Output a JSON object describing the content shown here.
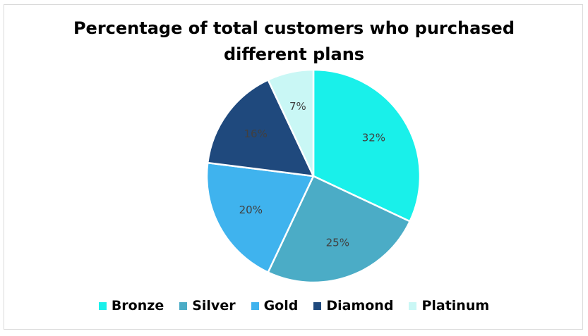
{
  "chart_data": {
    "type": "pie",
    "title_lines": [
      "Percentage of total customers who purchased",
      "different plans"
    ],
    "categories": [
      "Bronze",
      "Silver",
      "Gold",
      "Diamond",
      "Platinum"
    ],
    "values": [
      32,
      25,
      20,
      16,
      7
    ],
    "labels": [
      "32%",
      "25%",
      "20%",
      "16%",
      "7%"
    ],
    "colors": [
      "#19f0ea",
      "#4bacc6",
      "#3fb3ee",
      "#1f497d",
      "#c9f7f5"
    ],
    "legend_position": "bottom",
    "start_angle_deg": 0,
    "direction": "clockwise"
  }
}
